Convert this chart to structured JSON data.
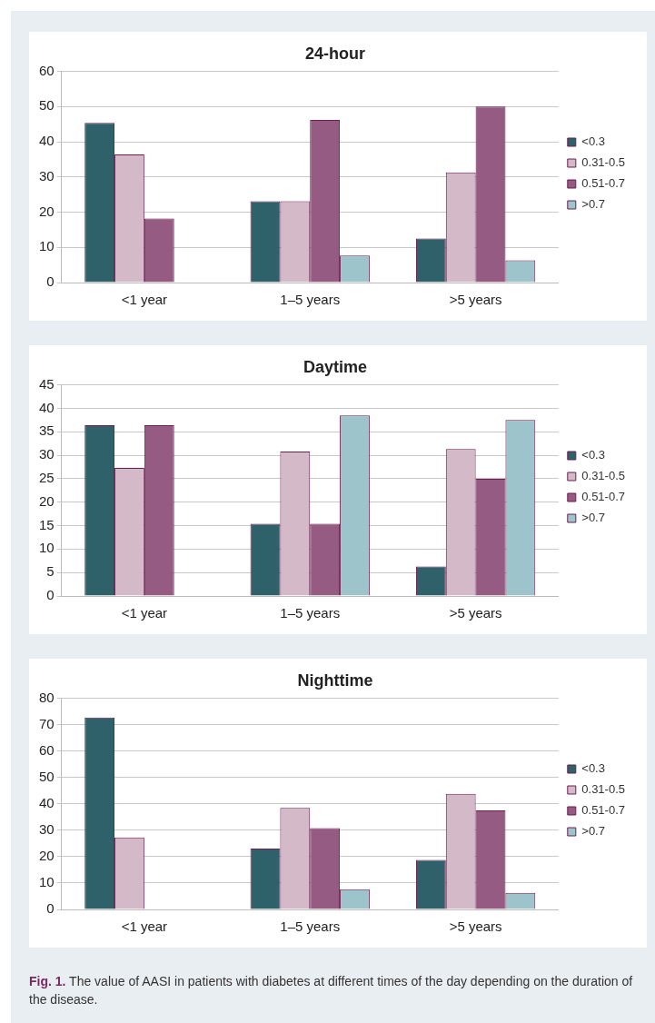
{
  "chart_data": [
    {
      "type": "bar",
      "title": "24-hour",
      "categories": [
        "<1 year",
        "1–5 years",
        ">5 years"
      ],
      "series": [
        {
          "name": "<0.3",
          "color": "#2e6169",
          "values": [
            45.4,
            23.1,
            12.5
          ]
        },
        {
          "name": "0.31-0.5",
          "color": "#d4b9c8",
          "values": [
            36.4,
            23.1,
            31.3
          ]
        },
        {
          "name": "0.51-0.7",
          "color": "#965b82",
          "values": [
            18.2,
            46.2,
            50
          ]
        },
        {
          "name": ">0.7",
          "color": "#9dc3cb",
          "values": [
            0,
            7.7,
            6.3
          ]
        }
      ],
      "ylim": [
        0,
        60
      ],
      "yticks": [
        0,
        10,
        20,
        30,
        40,
        50,
        60
      ],
      "grid": "y",
      "legend": "right"
    },
    {
      "type": "bar",
      "title": "Daytime",
      "categories": [
        "<1 year",
        "1–5 years",
        ">5 years"
      ],
      "series": [
        {
          "name": "<0.3",
          "color": "#2e6169",
          "values": [
            36.4,
            15.4,
            6.3
          ]
        },
        {
          "name": "0.31-0.5",
          "color": "#d4b9c8",
          "values": [
            27.3,
            30.8,
            31.3
          ]
        },
        {
          "name": "0.51-0.7",
          "color": "#965b82",
          "values": [
            36.4,
            15.4,
            25
          ]
        },
        {
          "name": ">0.7",
          "color": "#9dc3cb",
          "values": [
            0,
            38.5,
            37.5
          ]
        }
      ],
      "ylim": [
        0,
        45
      ],
      "yticks": [
        0,
        5,
        10,
        15,
        20,
        25,
        30,
        35,
        40,
        45
      ],
      "grid": "y",
      "legend": "right"
    },
    {
      "type": "bar",
      "title": "Nighttime",
      "categories": [
        "<1 year",
        "1–5 years",
        ">5 years"
      ],
      "series": [
        {
          "name": "<0.3",
          "color": "#2e6169",
          "values": [
            72.7,
            23.1,
            18.8
          ]
        },
        {
          "name": "0.31-0.5",
          "color": "#d4b9c8",
          "values": [
            27.3,
            38.5,
            43.8
          ]
        },
        {
          "name": "0.51-0.7",
          "color": "#965b82",
          "values": [
            0,
            30.8,
            37.5
          ]
        },
        {
          "name": ">0.7",
          "color": "#9dc3cb",
          "values": [
            0,
            7.7,
            6.3
          ]
        }
      ],
      "ylim": [
        0,
        80
      ],
      "yticks": [
        0,
        10,
        20,
        30,
        40,
        50,
        60,
        70,
        80
      ],
      "grid": "y",
      "legend": "right",
      "annotations": [
        "Fig. 1. The value of AASI in patients with diabetes at different times of the day depending on the duration of the disease."
      ]
    }
  ]
}
